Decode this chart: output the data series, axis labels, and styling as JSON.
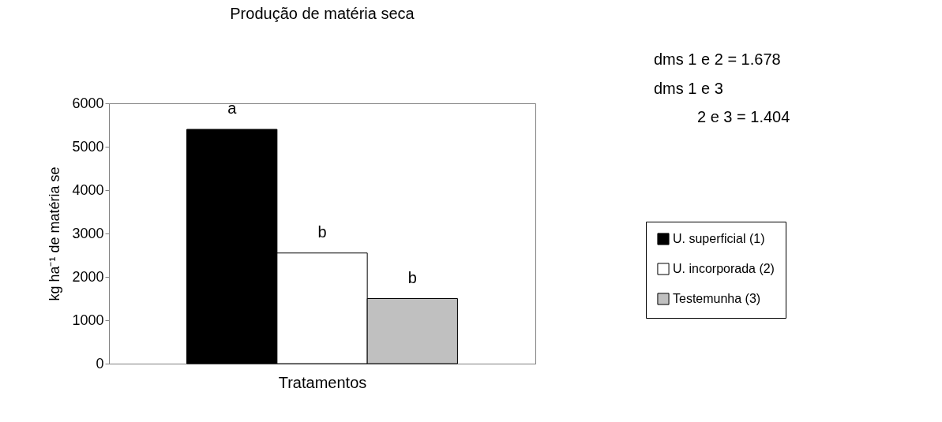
{
  "chart_data": {
    "type": "bar",
    "title": "Produção de matéria seca",
    "xlabel": "Tratamentos",
    "ylabel": "kg ha⁻¹ de matéria se",
    "categories": [
      null
    ],
    "series": [
      {
        "name": "U. superficial (1)",
        "color": "#000000",
        "values": [
          5400
        ],
        "value_labels": [
          "a"
        ]
      },
      {
        "name": "U. incorporada (2)",
        "color": "#ffffff",
        "values": [
          2550
        ],
        "value_labels": [
          "b"
        ]
      },
      {
        "name": "Testemunha (3)",
        "color": "#c0c0c0",
        "values": [
          1500
        ],
        "value_labels": [
          "b"
        ]
      }
    ],
    "ylim": [
      0,
      6000
    ],
    "yticks": [
      0,
      1000,
      2000,
      3000,
      4000,
      5000,
      6000
    ],
    "annotations": [
      "dms 1 e 2 = 1.678",
      "dms 1 e 3",
      "2 e 3 = 1.404"
    ],
    "grid": false,
    "legend": "right",
    "tick_labels": "y"
  }
}
